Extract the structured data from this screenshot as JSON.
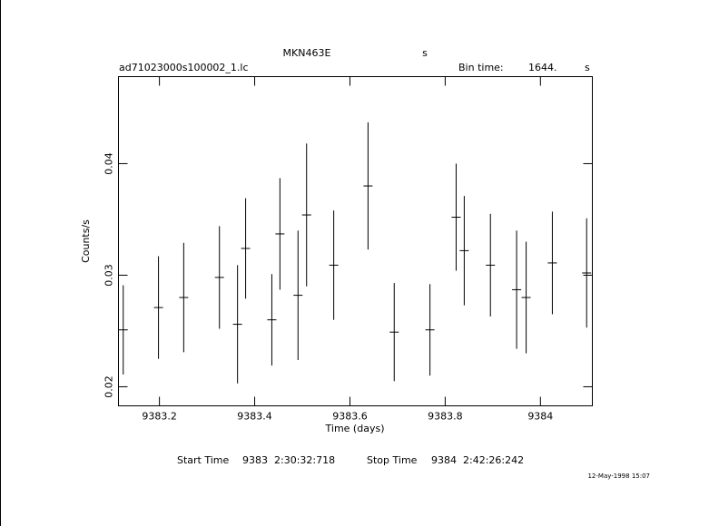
{
  "chart_data": {
    "type": "errorbar",
    "title": "MKN463E",
    "title_unit": "s",
    "file_name": "ad71023000s100002_1.lc",
    "bin_time_label": "Bin time:",
    "bin_time": "1644.",
    "bin_time_unit": "s",
    "xlabel": "Time (days)",
    "ylabel": "Counts/s",
    "start_label": "Start Time",
    "start_time": "9383  2:30:32:718",
    "stop_label": "Stop Time",
    "stop_time": "9384  2:42:26:242",
    "timestamp": "12-May-1998 15:07",
    "color": "#000000",
    "x": [
      9383.124,
      9383.198,
      9383.251,
      9383.326,
      9383.364,
      9383.381,
      9383.436,
      9383.453,
      9383.491,
      9383.509,
      9383.566,
      9383.638,
      9383.693,
      9383.768,
      9383.823,
      9383.84,
      9383.895,
      9383.95,
      9383.97,
      9384.025,
      9384.097
    ],
    "values": [
      0.0251,
      0.0271,
      0.028,
      0.0298,
      0.0256,
      0.0324,
      0.026,
      0.0337,
      0.0282,
      0.0354,
      0.0309,
      0.038,
      0.0249,
      0.0251,
      0.0352,
      0.0322,
      0.0309,
      0.0287,
      0.028,
      0.0311,
      0.0302
    ],
    "errors": [
      0.004,
      0.0046,
      0.0049,
      0.0046,
      0.0053,
      0.0045,
      0.0041,
      0.005,
      0.0058,
      0.0064,
      0.0049,
      0.0057,
      0.0044,
      0.0041,
      0.0048,
      0.0049,
      0.0046,
      0.0053,
      0.005,
      0.0046,
      0.0049
    ],
    "xlim": [
      9383.114,
      9384.109
    ],
    "xticks": [
      9383.2,
      9383.4,
      9383.6,
      9383.8,
      9384
    ],
    "ylim": [
      0.01829,
      0.0478
    ],
    "yticks": [
      0.02,
      0.03,
      0.04
    ]
  }
}
